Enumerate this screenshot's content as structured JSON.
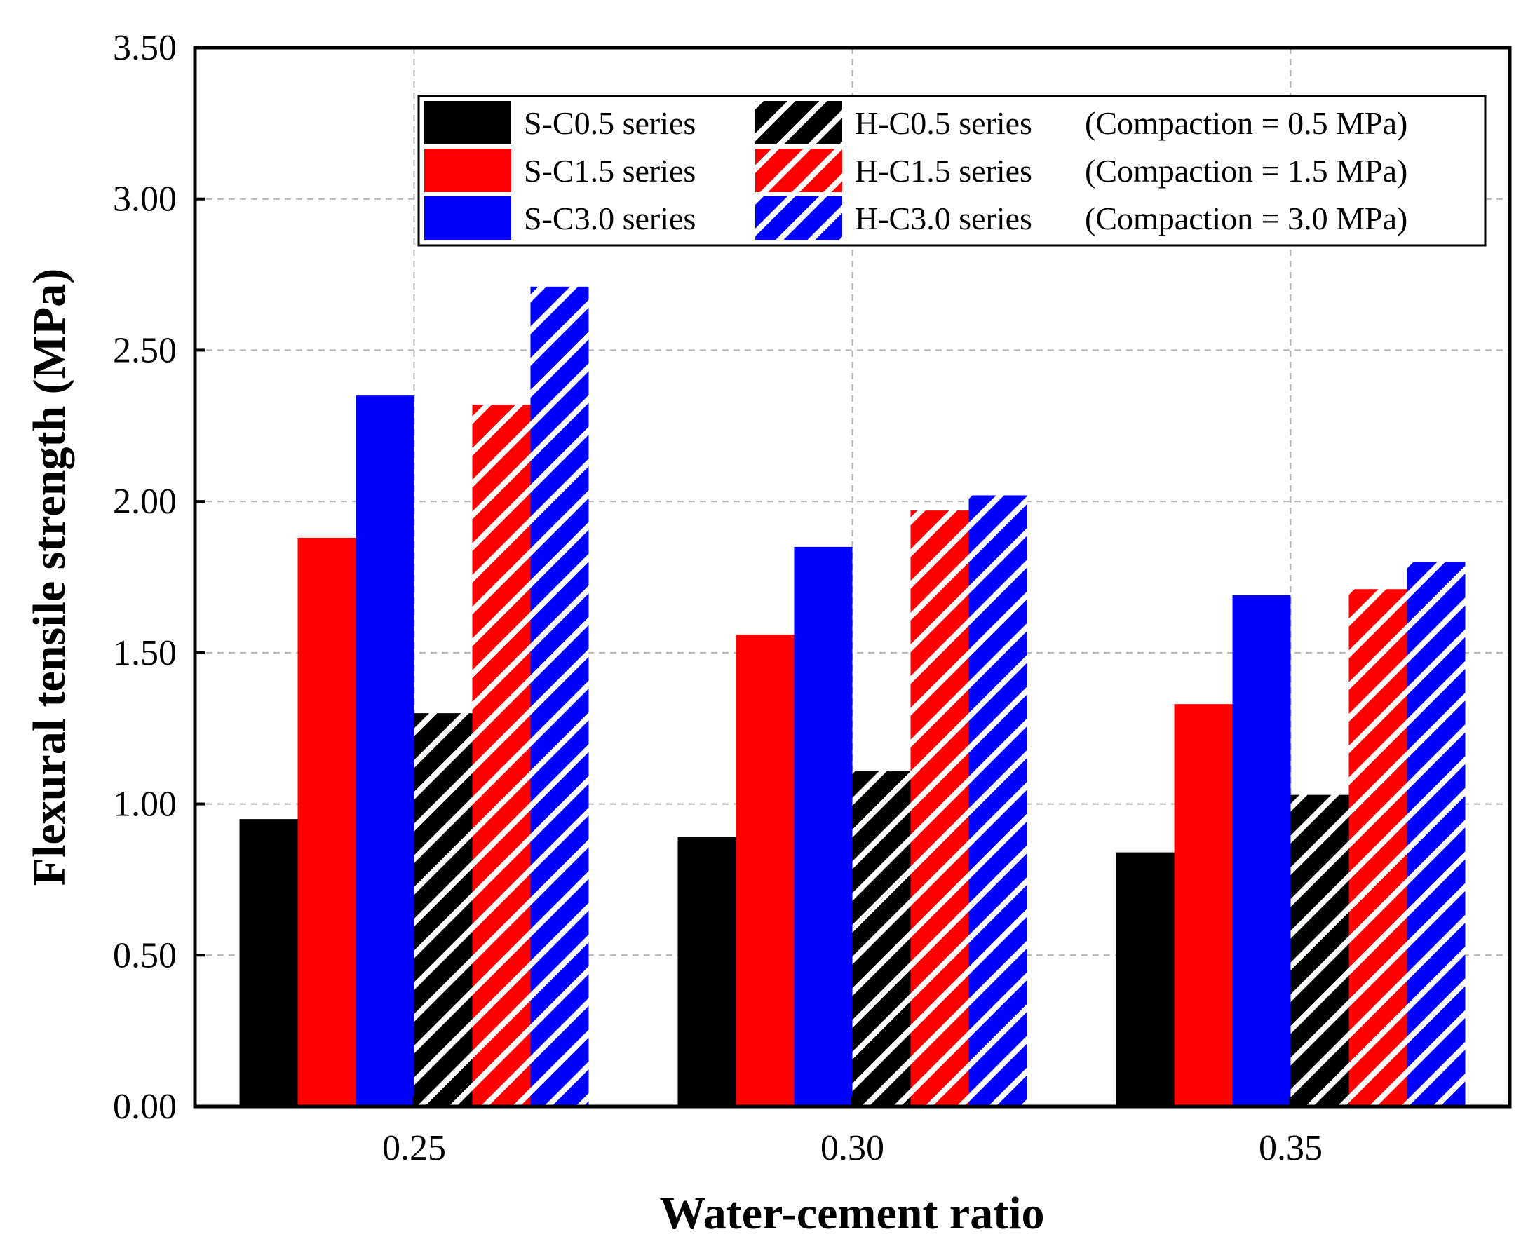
{
  "chart_data": {
    "type": "bar",
    "title": "",
    "xlabel": "Water-cement ratio",
    "ylabel": "Flexural tensile strength (MPa)",
    "categories": [
      "0.25",
      "0.30",
      "0.35"
    ],
    "ylim": [
      0,
      3.5
    ],
    "yticks": [
      "0.00",
      "0.50",
      "1.00",
      "1.50",
      "2.00",
      "2.50",
      "3.00",
      "3.50"
    ],
    "grid": true,
    "legend_position": "top-right",
    "series": [
      {
        "name": "S-C0.5 series",
        "values": [
          0.95,
          0.89,
          0.84
        ],
        "color": "#000000",
        "pattern": "solid"
      },
      {
        "name": "S-C1.5 series",
        "values": [
          1.88,
          1.56,
          1.33
        ],
        "color": "#ff0000",
        "pattern": "solid"
      },
      {
        "name": "S-C3.0 series",
        "values": [
          2.35,
          1.85,
          1.69
        ],
        "color": "#0000ff",
        "pattern": "solid"
      },
      {
        "name": "H-C0.5 series",
        "values": [
          1.3,
          1.11,
          1.03
        ],
        "color": "#000000",
        "pattern": "hatched"
      },
      {
        "name": "H-C1.5 series",
        "values": [
          2.32,
          1.97,
          1.71
        ],
        "color": "#ff0000",
        "pattern": "hatched"
      },
      {
        "name": "H-C3.0 series",
        "values": [
          2.71,
          2.02,
          1.8
        ],
        "color": "#0000ff",
        "pattern": "hatched"
      }
    ],
    "legend_notes": [
      "(Compaction = 0.5 MPa)",
      "(Compaction = 1.5 MPa)",
      "(Compaction = 3.0 MPa)"
    ]
  }
}
